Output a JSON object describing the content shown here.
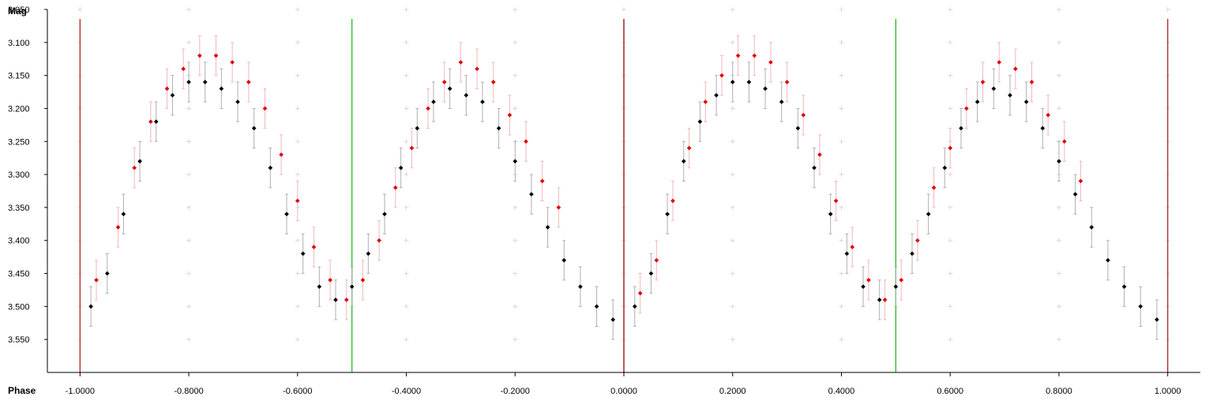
{
  "chart_data": {
    "type": "scatter",
    "title": "",
    "xlabel": "Phase",
    "ylabel": "Mag",
    "xlim": [
      -1.06,
      1.06
    ],
    "ylim": [
      3.05,
      3.6
    ],
    "y_inverted": true,
    "grid": "crosses",
    "x_ticks": [
      "-1.0000",
      "-0.8000",
      "-0.6000",
      "-0.4000",
      "-0.2000",
      "0.0000",
      "0.2000",
      "0.4000",
      "0.6000",
      "0.8000",
      "1.0000"
    ],
    "x_tick_values": [
      -1.0,
      -0.8,
      -0.6,
      -0.4,
      -0.2,
      0.0,
      0.2,
      0.4,
      0.6,
      0.8,
      1.0
    ],
    "y_ticks": [
      "3.050",
      "3.100",
      "3.150",
      "3.200",
      "3.250",
      "3.300",
      "3.350",
      "3.400",
      "3.450",
      "3.500",
      "3.550"
    ],
    "y_tick_values": [
      3.05,
      3.1,
      3.15,
      3.2,
      3.25,
      3.3,
      3.35,
      3.4,
      3.45,
      3.5,
      3.55
    ],
    "markers": [
      {
        "phase": -1.0,
        "color": "#b22222"
      },
      {
        "phase": -0.5,
        "color": "#22bb22"
      },
      {
        "phase": 0.0,
        "color": "#990000"
      },
      {
        "phase": 0.5,
        "color": "#22bb22"
      },
      {
        "phase": 1.0,
        "color": "#b22222"
      }
    ],
    "series": [
      {
        "color": "#000000",
        "error_color": "#b0b0b0",
        "x": [
          -0.98,
          -0.95,
          -0.92,
          -0.89,
          -0.86,
          -0.83,
          -0.8,
          -0.77,
          -0.74,
          -0.71,
          -0.68,
          -0.65,
          -0.62,
          -0.59,
          -0.56,
          -0.53,
          -0.5,
          -0.47,
          -0.44,
          -0.41,
          -0.38,
          -0.35,
          -0.32,
          -0.29,
          -0.26,
          -0.23,
          -0.2,
          -0.17,
          -0.14,
          -0.11,
          -0.08,
          -0.05,
          -0.02,
          0.02,
          0.05,
          0.08,
          0.11,
          0.14,
          0.17,
          0.2,
          0.23,
          0.26,
          0.29,
          0.32,
          0.35,
          0.38,
          0.41,
          0.44,
          0.47,
          0.5,
          0.53,
          0.56,
          0.59,
          0.62,
          0.65,
          0.68,
          0.71,
          0.74,
          0.77,
          0.8,
          0.83,
          0.86,
          0.89,
          0.92,
          0.95,
          0.98
        ],
        "y": [
          3.5,
          3.45,
          3.36,
          3.28,
          3.22,
          3.18,
          3.16,
          3.16,
          3.17,
          3.19,
          3.23,
          3.29,
          3.36,
          3.42,
          3.47,
          3.49,
          3.47,
          3.42,
          3.36,
          3.29,
          3.23,
          3.19,
          3.17,
          3.18,
          3.19,
          3.23,
          3.28,
          3.33,
          3.38,
          3.43,
          3.47,
          3.5,
          3.52,
          3.5,
          3.45,
          3.36,
          3.28,
          3.22,
          3.18,
          3.16,
          3.16,
          3.17,
          3.19,
          3.23,
          3.29,
          3.36,
          3.42,
          3.47,
          3.49,
          3.47,
          3.42,
          3.36,
          3.29,
          3.23,
          3.19,
          3.17,
          3.18,
          3.19,
          3.23,
          3.28,
          3.33,
          3.38,
          3.43,
          3.47,
          3.5,
          3.52
        ]
      },
      {
        "color": "#e00000",
        "error_color": "#f2b8b8",
        "x": [
          -0.97,
          -0.93,
          -0.9,
          -0.87,
          -0.84,
          -0.81,
          -0.78,
          -0.75,
          -0.72,
          -0.69,
          -0.66,
          -0.63,
          -0.6,
          -0.57,
          -0.54,
          -0.51,
          -0.48,
          -0.45,
          -0.42,
          -0.39,
          -0.36,
          -0.33,
          -0.3,
          -0.27,
          -0.24,
          -0.21,
          -0.18,
          -0.15,
          -0.12,
          0.03,
          0.06,
          0.09,
          0.12,
          0.15,
          0.18,
          0.21,
          0.24,
          0.27,
          0.3,
          0.33,
          0.36,
          0.39,
          0.42,
          0.45,
          0.48,
          0.51,
          0.54,
          0.57,
          0.6,
          0.63,
          0.66,
          0.69,
          0.72,
          0.75,
          0.78,
          0.81,
          0.84
        ],
        "y": [
          3.46,
          3.38,
          3.29,
          3.22,
          3.17,
          3.14,
          3.12,
          3.12,
          3.13,
          3.16,
          3.2,
          3.27,
          3.34,
          3.41,
          3.46,
          3.49,
          3.46,
          3.4,
          3.32,
          3.26,
          3.2,
          3.16,
          3.13,
          3.14,
          3.16,
          3.21,
          3.25,
          3.31,
          3.35,
          3.48,
          3.43,
          3.34,
          3.26,
          3.19,
          3.15,
          3.12,
          3.12,
          3.13,
          3.16,
          3.21,
          3.27,
          3.34,
          3.41,
          3.46,
          3.49,
          3.46,
          3.4,
          3.32,
          3.26,
          3.2,
          3.16,
          3.13,
          3.14,
          3.16,
          3.21,
          3.25,
          3.31
        ]
      }
    ]
  }
}
